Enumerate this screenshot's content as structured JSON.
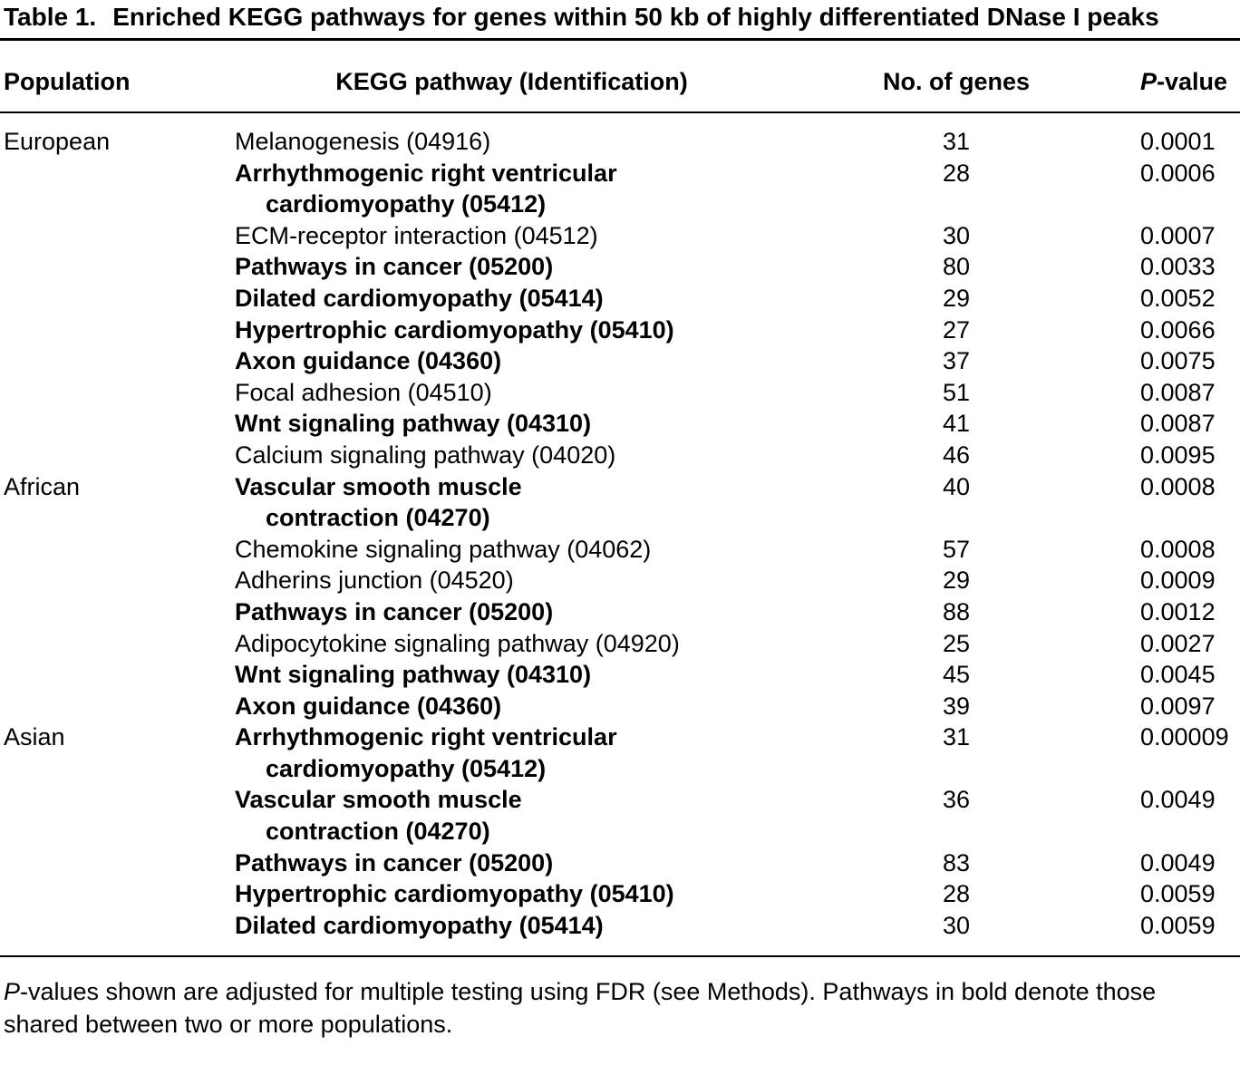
{
  "title": {
    "label": "Table 1.",
    "text": "Enriched KEGG pathways for genes within 50 kb of highly differentiated DNase I peaks"
  },
  "header": {
    "population": "Population",
    "pathway": "KEGG pathway (Identification)",
    "genes": "No. of genes",
    "pvalue_italic": "P",
    "pvalue_rest": "-value"
  },
  "table": {
    "rows": [
      {
        "population": "European",
        "pathway": "Melanogenesis (04916)",
        "genes": "31",
        "pvalue": "0.0001",
        "bold": false
      },
      {
        "population": "",
        "pathway": "Arrhythmogenic right ventricular\ncardiomyopathy (05412)",
        "genes": "28",
        "pvalue": "0.0006",
        "bold": true
      },
      {
        "population": "",
        "pathway": "ECM-receptor interaction (04512)",
        "genes": "30",
        "pvalue": "0.0007",
        "bold": false
      },
      {
        "population": "",
        "pathway": "Pathways in cancer (05200)",
        "genes": "80",
        "pvalue": "0.0033",
        "bold": true
      },
      {
        "population": "",
        "pathway": "Dilated cardiomyopathy (05414)",
        "genes": "29",
        "pvalue": "0.0052",
        "bold": true
      },
      {
        "population": "",
        "pathway": "Hypertrophic cardiomyopathy (05410)",
        "genes": "27",
        "pvalue": "0.0066",
        "bold": true
      },
      {
        "population": "",
        "pathway": "Axon guidance (04360)",
        "genes": "37",
        "pvalue": "0.0075",
        "bold": true
      },
      {
        "population": "",
        "pathway": "Focal adhesion (04510)",
        "genes": "51",
        "pvalue": "0.0087",
        "bold": false
      },
      {
        "population": "",
        "pathway": "Wnt signaling pathway (04310)",
        "genes": "41",
        "pvalue": "0.0087",
        "bold": true
      },
      {
        "population": "",
        "pathway": "Calcium signaling pathway (04020)",
        "genes": "46",
        "pvalue": "0.0095",
        "bold": false
      },
      {
        "population": "African",
        "pathway": "Vascular smooth muscle\ncontraction (04270)",
        "genes": "40",
        "pvalue": "0.0008",
        "bold": true
      },
      {
        "population": "",
        "pathway": "Chemokine signaling pathway (04062)",
        "genes": "57",
        "pvalue": "0.0008",
        "bold": false
      },
      {
        "population": "",
        "pathway": "Adherins junction (04520)",
        "genes": "29",
        "pvalue": "0.0009",
        "bold": false
      },
      {
        "population": "",
        "pathway": "Pathways in cancer (05200)",
        "genes": "88",
        "pvalue": "0.0012",
        "bold": true
      },
      {
        "population": "",
        "pathway": "Adipocytokine signaling pathway (04920)",
        "genes": "25",
        "pvalue": "0.0027",
        "bold": false
      },
      {
        "population": "",
        "pathway": "Wnt signaling pathway (04310)",
        "genes": "45",
        "pvalue": "0.0045",
        "bold": true
      },
      {
        "population": "",
        "pathway": "Axon guidance (04360)",
        "genes": "39",
        "pvalue": "0.0097",
        "bold": true
      },
      {
        "population": "Asian",
        "pathway": "Arrhythmogenic right ventricular\ncardiomyopathy (05412)",
        "genes": "31",
        "pvalue": "0.00009",
        "bold": true
      },
      {
        "population": "",
        "pathway": "Vascular smooth muscle\ncontraction (04270)",
        "genes": "36",
        "pvalue": "0.0049",
        "bold": true
      },
      {
        "population": "",
        "pathway": "Pathways in cancer (05200)",
        "genes": "83",
        "pvalue": "0.0049",
        "bold": true
      },
      {
        "population": "",
        "pathway": "Hypertrophic cardiomyopathy (05410)",
        "genes": "28",
        "pvalue": "0.0059",
        "bold": true
      },
      {
        "population": "",
        "pathway": "Dilated cardiomyopathy (05414)",
        "genes": "30",
        "pvalue": "0.0059",
        "bold": true
      }
    ]
  },
  "footer": {
    "p_italic": "P",
    "text": "-values shown are adjusted for multiple testing using FDR (see Methods). Pathways in bold denote those shared between two or more populations."
  }
}
